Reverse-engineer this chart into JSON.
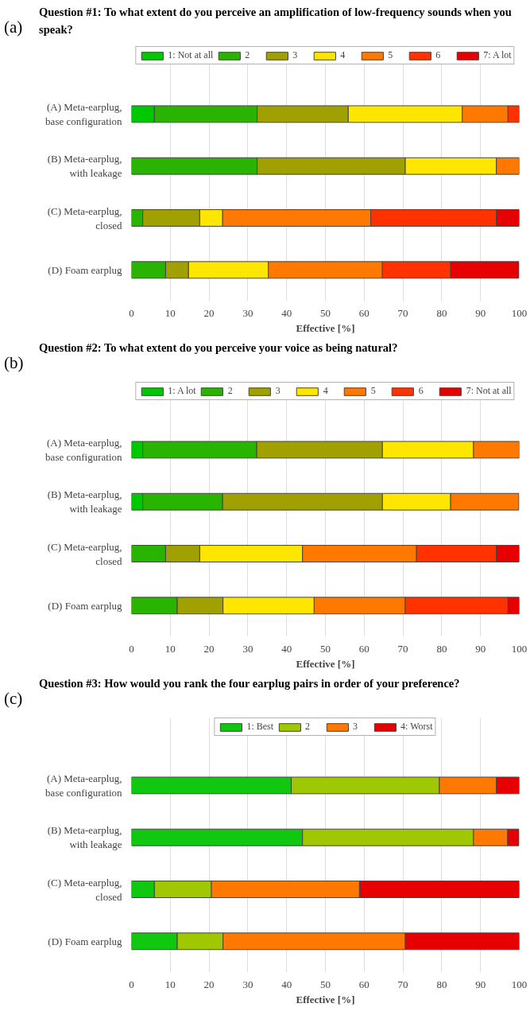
{
  "chart_data": [
    {
      "type": "bar",
      "orientation": "horizontal",
      "stacked": true,
      "title": "Question #1: To what extent do you perceive an amplification of low-frequency sounds when you speak?",
      "annotations": [
        "(a)"
      ],
      "xlabel": "Effective [%]",
      "categories": [
        "(A) Meta-earplug,\nbase configuration",
        "(B) Meta-earplug,\nwith leakage",
        "(C) Meta-earplug,\nclosed",
        "(D) Foam earplug"
      ],
      "xlim": [
        0,
        100
      ],
      "xticks": [
        0,
        10,
        20,
        30,
        40,
        50,
        60,
        70,
        80,
        90,
        100
      ],
      "grid": "x",
      "legend": "top",
      "series": [
        {
          "name": "1: Not at all",
          "color": "#00c800",
          "values": [
            5.9,
            0,
            0,
            0
          ]
        },
        {
          "name": "2",
          "color": "#28b400",
          "values": [
            26.5,
            32.4,
            2.9,
            8.8
          ]
        },
        {
          "name": "3",
          "color": "#a0a000",
          "values": [
            23.5,
            38.2,
            14.7,
            5.9
          ]
        },
        {
          "name": "4",
          "color": "#ffe600",
          "values": [
            29.4,
            23.5,
            5.9,
            20.6
          ]
        },
        {
          "name": "5",
          "color": "#ff7800",
          "values": [
            11.8,
            5.9,
            38.2,
            29.4
          ]
        },
        {
          "name": "6",
          "color": "#ff3200",
          "values": [
            2.9,
            0,
            32.4,
            17.6
          ]
        },
        {
          "name": "7: A lot",
          "color": "#e60000",
          "values": [
            0,
            0,
            5.9,
            17.6
          ]
        }
      ]
    },
    {
      "type": "bar",
      "orientation": "horizontal",
      "stacked": true,
      "title": "Question #2: To what extent do you perceive your voice as being natural?",
      "annotations": [
        "(b)"
      ],
      "xlabel": "Effective [%]",
      "categories": [
        "(A) Meta-earplug,\nbase configuration",
        "(B) Meta-earplug,\nwith leakage",
        "(C) Meta-earplug,\nclosed",
        "(D) Foam earplug"
      ],
      "xlim": [
        0,
        100
      ],
      "xticks": [
        0,
        10,
        20,
        30,
        40,
        50,
        60,
        70,
        80,
        90,
        100
      ],
      "grid": "x",
      "legend": "top",
      "series": [
        {
          "name": "1: A lot",
          "color": "#00c800",
          "values": [
            2.9,
            2.9,
            0,
            0
          ]
        },
        {
          "name": "2",
          "color": "#28b400",
          "values": [
            29.4,
            20.6,
            8.8,
            11.8
          ]
        },
        {
          "name": "3",
          "color": "#a0a000",
          "values": [
            32.4,
            41.2,
            8.8,
            11.8
          ]
        },
        {
          "name": "4",
          "color": "#ffe600",
          "values": [
            23.5,
            17.6,
            26.5,
            23.5
          ]
        },
        {
          "name": "5",
          "color": "#ff7800",
          "values": [
            11.8,
            17.6,
            29.4,
            23.5
          ]
        },
        {
          "name": "6",
          "color": "#ff3200",
          "values": [
            0,
            0,
            20.6,
            26.5
          ]
        },
        {
          "name": "7: Not at all",
          "color": "#e60000",
          "values": [
            0,
            0,
            5.9,
            2.9
          ]
        }
      ]
    },
    {
      "type": "bar",
      "orientation": "horizontal",
      "stacked": true,
      "title": "Question #3: How would you rank the four earplug pairs in order of your preference?",
      "annotations": [
        "(c)"
      ],
      "xlabel": "Effective [%]",
      "categories": [
        "(A) Meta-earplug,\nbase configuration",
        "(B) Meta-earplug,\nwith leakage",
        "(C) Meta-earplug,\nclosed",
        "(D) Foam earplug"
      ],
      "xlim": [
        0,
        100
      ],
      "xticks": [
        0,
        10,
        20,
        30,
        40,
        50,
        60,
        70,
        80,
        90,
        100
      ],
      "grid": "x",
      "legend": "top",
      "series": [
        {
          "name": "1: Best",
          "color": "#10c810",
          "values": [
            41.2,
            44.1,
            5.9,
            11.8
          ]
        },
        {
          "name": "2",
          "color": "#a0c800",
          "values": [
            38.2,
            44.1,
            14.7,
            11.8
          ]
        },
        {
          "name": "3",
          "color": "#ff7800",
          "values": [
            14.7,
            8.8,
            38.2,
            47.0
          ]
        },
        {
          "name": "4: Worst",
          "color": "#e60000",
          "values": [
            5.9,
            2.9,
            41.2,
            29.4
          ]
        }
      ]
    }
  ]
}
